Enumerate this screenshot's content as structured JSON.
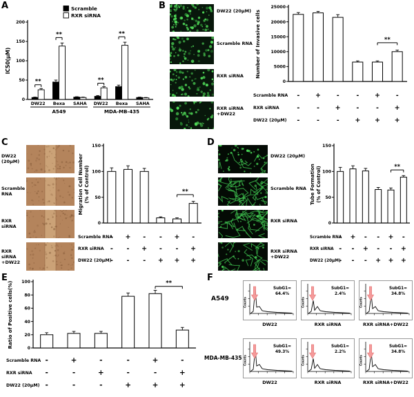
{
  "figure": {
    "panels": {
      "A": {
        "label": "A"
      },
      "B": {
        "label": "B"
      },
      "C": {
        "label": "C"
      },
      "D": {
        "label": "D"
      },
      "E": {
        "label": "E"
      },
      "F": {
        "label": "F"
      }
    }
  },
  "panelB": {
    "images": [
      {
        "label": "DW22 (20μM)"
      },
      {
        "label": "Scramble RNA"
      },
      {
        "label": "RXR siRNA"
      },
      {
        "label": "RXR siRNA +DW22"
      }
    ]
  },
  "panelC": {
    "images": [
      {
        "label": "DW22 (20μM)"
      },
      {
        "label": "Scramble RNA"
      },
      {
        "label": "RXR siRNA"
      },
      {
        "label": "RXR siRNA +DW22"
      }
    ]
  },
  "panelD": {
    "images": [
      {
        "label": "DW22 (20μM)"
      },
      {
        "label": "Scramble RNA"
      },
      {
        "label": "RXR siRNA"
      },
      {
        "label": "RXR siRNA +DW22"
      }
    ]
  },
  "panelF": {
    "axis_label": "Counts",
    "rows": [
      {
        "cell_line": "A549",
        "plots": [
          {
            "xlabel": "DW22",
            "stat_label": "SubG1=",
            "stat_value": "64.4%"
          },
          {
            "xlabel": "RXR siRNA",
            "stat_label": "SubG1=",
            "stat_value": "2.4%"
          },
          {
            "xlabel": "RXR siRNA+DW22",
            "stat_label": "SubG1=",
            "stat_value": "34.8%"
          }
        ]
      },
      {
        "cell_line": "MDA-MB-435",
        "plots": [
          {
            "xlabel": "DW22",
            "stat_label": "SubG1=",
            "stat_value": "49.3%"
          },
          {
            "xlabel": "RXR siRNA",
            "stat_label": "SubG1=",
            "stat_value": "2.2%"
          },
          {
            "xlabel": "RXR siRNA+DW22",
            "stat_label": "SubG1=",
            "stat_value": "34.8%"
          }
        ]
      }
    ]
  },
  "colors": {
    "scramble_bar": "#000000",
    "sirna_bar": "#ffffff",
    "flow_arrow": "#f59a9a",
    "fluorescence_green": "#52e05a",
    "migration_tan": "#b4845c"
  },
  "chart_data": [
    {
      "id": "A",
      "type": "bar",
      "ylabel": "IC50(μM)",
      "ylim": [
        0,
        200
      ],
      "yticks": [
        0,
        50,
        100,
        150,
        200
      ],
      "categories": [
        "DW22",
        "Bexa",
        "SAHA",
        "DW22",
        "Bexa",
        "SAHA"
      ],
      "groups": [
        {
          "label": "A549",
          "span": [
            0,
            2
          ]
        },
        {
          "label": "MDA-MB-435",
          "span": [
            3,
            5
          ]
        }
      ],
      "legend_position": "top",
      "series": [
        {
          "name": "Scramble",
          "color": "#000000",
          "values": [
            5,
            45,
            6,
            8,
            33,
            5
          ],
          "errors": [
            1,
            5,
            1,
            2,
            4,
            1
          ]
        },
        {
          "name": "RXR siRNA",
          "color": "#ffffff",
          "values": [
            25,
            138,
            5,
            30,
            140,
            4
          ],
          "errors": [
            3,
            8,
            1,
            3,
            8,
            1
          ]
        }
      ],
      "sig": [
        {
          "bars": [
            0,
            1
          ],
          "y": 38,
          "label": "**"
        },
        {
          "bars": [
            2,
            3
          ],
          "y": 160,
          "label": "**"
        },
        {
          "bars": [
            6,
            7
          ],
          "y": 42,
          "label": "**"
        },
        {
          "bars": [
            8,
            9
          ],
          "y": 162,
          "label": "**"
        }
      ]
    },
    {
      "id": "B",
      "type": "bar",
      "ylabel": "Number of Invasive cells",
      "ylim": [
        0,
        25000
      ],
      "yticks": [
        0,
        5000,
        10000,
        15000,
        20000,
        25000
      ],
      "values": [
        22500,
        23000,
        21500,
        6500,
        6500,
        10000
      ],
      "errors": [
        600,
        500,
        900,
        400,
        400,
        500
      ],
      "sig": [
        {
          "bars": [
            4,
            5
          ],
          "y": 13000,
          "label": "**"
        }
      ],
      "matrix": {
        "rows": [
          {
            "label": "Scramble RNA",
            "signs": [
              "-",
              "+",
              "-",
              "-",
              "+",
              "-"
            ]
          },
          {
            "label": "RXR siRNA",
            "signs": [
              "-",
              "-",
              "+",
              "-",
              "-",
              "+"
            ]
          },
          {
            "label": "DW22 (20μM)",
            "signs": [
              "-",
              "-",
              "-",
              "+",
              "+",
              "+"
            ]
          }
        ]
      }
    },
    {
      "id": "C",
      "type": "bar",
      "ylabel": "Migration Cell Number",
      "ylabel2": "(% of Control)",
      "ylim": [
        0,
        150
      ],
      "yticks": [
        0,
        50,
        100,
        150
      ],
      "values": [
        100,
        104,
        100,
        10,
        8,
        38
      ],
      "errors": [
        7,
        7,
        6,
        2,
        2,
        4
      ],
      "sig": [
        {
          "bars": [
            4,
            5
          ],
          "y": 55,
          "label": "**"
        }
      ],
      "matrix": {
        "rows": [
          {
            "label": "Scramble RNA",
            "signs": [
              "-",
              "+",
              "-",
              "-",
              "+",
              "-"
            ]
          },
          {
            "label": "RXR siRNA",
            "signs": [
              "-",
              "-",
              "+",
              "-",
              "-",
              "+"
            ]
          },
          {
            "label": "DW22 (20μM)",
            "signs": [
              "-",
              "-",
              "-",
              "+",
              "+",
              "+"
            ]
          }
        ]
      }
    },
    {
      "id": "D",
      "type": "bar",
      "ylabel": "Tube Formation",
      "ylabel2": "(% of Control)",
      "ylim": [
        0,
        150
      ],
      "yticks": [
        0,
        50,
        100,
        150
      ],
      "values": [
        100,
        105,
        101,
        65,
        64,
        89
      ],
      "errors": [
        8,
        6,
        5,
        4,
        4,
        3
      ],
      "sig": [
        {
          "bars": [
            4,
            5
          ],
          "y": 103,
          "label": "**"
        }
      ],
      "matrix": {
        "rows": [
          {
            "label": "Scramble RNA",
            "signs": [
              "-",
              "+",
              "-",
              "-",
              "+",
              "-"
            ]
          },
          {
            "label": "RXR siRNA",
            "signs": [
              "-",
              "-",
              "+",
              "-",
              "-",
              "+"
            ]
          },
          {
            "label": "DW22 (20μM)",
            "signs": [
              "-",
              "-",
              "-",
              "+",
              "+",
              "+"
            ]
          }
        ]
      }
    },
    {
      "id": "E",
      "type": "bar",
      "ylabel": "Ratio of Positive cells(%)",
      "ylim": [
        0,
        100
      ],
      "yticks": [
        0,
        20,
        40,
        60,
        80,
        100
      ],
      "values": [
        20,
        22,
        22,
        78,
        82,
        27
      ],
      "errors": [
        3,
        3,
        3,
        5,
        5,
        4
      ],
      "sig": [
        {
          "bars": [
            4,
            5
          ],
          "y": 93,
          "label": "**"
        }
      ],
      "matrix": {
        "rows": [
          {
            "label": "Scramble RNA",
            "signs": [
              "-",
              "+",
              "-",
              "-",
              "+",
              "-"
            ]
          },
          {
            "label": "RXR siRNA",
            "signs": [
              "-",
              "-",
              "+",
              "-",
              "-",
              "+"
            ]
          },
          {
            "label": "DW22 (20μM)",
            "signs": [
              "-",
              "-",
              "-",
              "+",
              "+",
              "+"
            ]
          }
        ]
      }
    }
  ]
}
